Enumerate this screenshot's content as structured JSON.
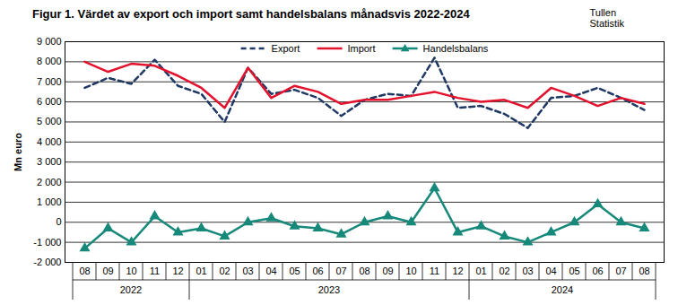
{
  "chart_data": {
    "type": "line",
    "title": "Figur 1. Värdet av export och import samt handelsbalans månadsvis 2022-2024",
    "source": [
      "Tullen",
      "Statistik"
    ],
    "y_label": "Mn euro",
    "categories": [
      "08",
      "09",
      "10",
      "11",
      "12",
      "01",
      "02",
      "03",
      "04",
      "05",
      "06",
      "07",
      "08",
      "09",
      "10",
      "11",
      "12",
      "01",
      "02",
      "03",
      "04",
      "05",
      "06",
      "07",
      "08"
    ],
    "years": [
      "2022",
      "2022",
      "2022",
      "2022",
      "2022",
      "2023",
      "2023",
      "2023",
      "2023",
      "2023",
      "2023",
      "2023",
      "2023",
      "2023",
      "2023",
      "2023",
      "2023",
      "2024",
      "2024",
      "2024",
      "2024",
      "2024",
      "2024",
      "2024",
      "2024"
    ],
    "series": [
      {
        "name": "Export",
        "color": "#1f3864",
        "line_style": "dashed",
        "values": [
          6700,
          7200,
          6900,
          8100,
          6800,
          6400,
          5000,
          7700,
          6400,
          6600,
          6200,
          5300,
          6100,
          6400,
          6300,
          8200,
          5700,
          5800,
          5400,
          4700,
          6200,
          6300,
          6700,
          6200,
          5600
        ]
      },
      {
        "name": "Import",
        "color": "#e3122d",
        "line_style": "solid",
        "values": [
          8000,
          7500,
          7900,
          7800,
          7300,
          6700,
          5700,
          7700,
          6200,
          6800,
          6500,
          5900,
          6100,
          6100,
          6300,
          6500,
          6200,
          6000,
          6100,
          5700,
          6700,
          6300,
          5800,
          6200,
          5900
        ]
      },
      {
        "name": "Handelsbalans",
        "color": "#17897a",
        "line_style": "solid",
        "marker": "triangle",
        "values": [
          -1300,
          -300,
          -1000,
          300,
          -500,
          -300,
          -700,
          0,
          200,
          -200,
          -300,
          -600,
          0,
          300,
          0,
          1700,
          -500,
          -200,
          -700,
          -1000,
          -500,
          0,
          900,
          0,
          -300
        ]
      }
    ],
    "ylim": [
      -2000,
      9000
    ],
    "yticks": [
      {
        "value": -2000,
        "label": "-2 000"
      },
      {
        "value": -1000,
        "label": "-1 000"
      },
      0,
      {
        "value": 1000,
        "label": "1 000"
      },
      {
        "value": 2000,
        "label": "2 000"
      },
      {
        "value": 3000,
        "label": "3 000"
      },
      {
        "value": 4000,
        "label": "4 000"
      },
      {
        "value": 5000,
        "label": "5 000"
      },
      {
        "value": 6000,
        "label": "6 000"
      },
      {
        "value": 7000,
        "label": "7 000"
      },
      {
        "value": 8000,
        "label": "8 000"
      },
      {
        "value": 9000,
        "label": "9 000"
      }
    ],
    "grid": true,
    "legend": "top"
  }
}
